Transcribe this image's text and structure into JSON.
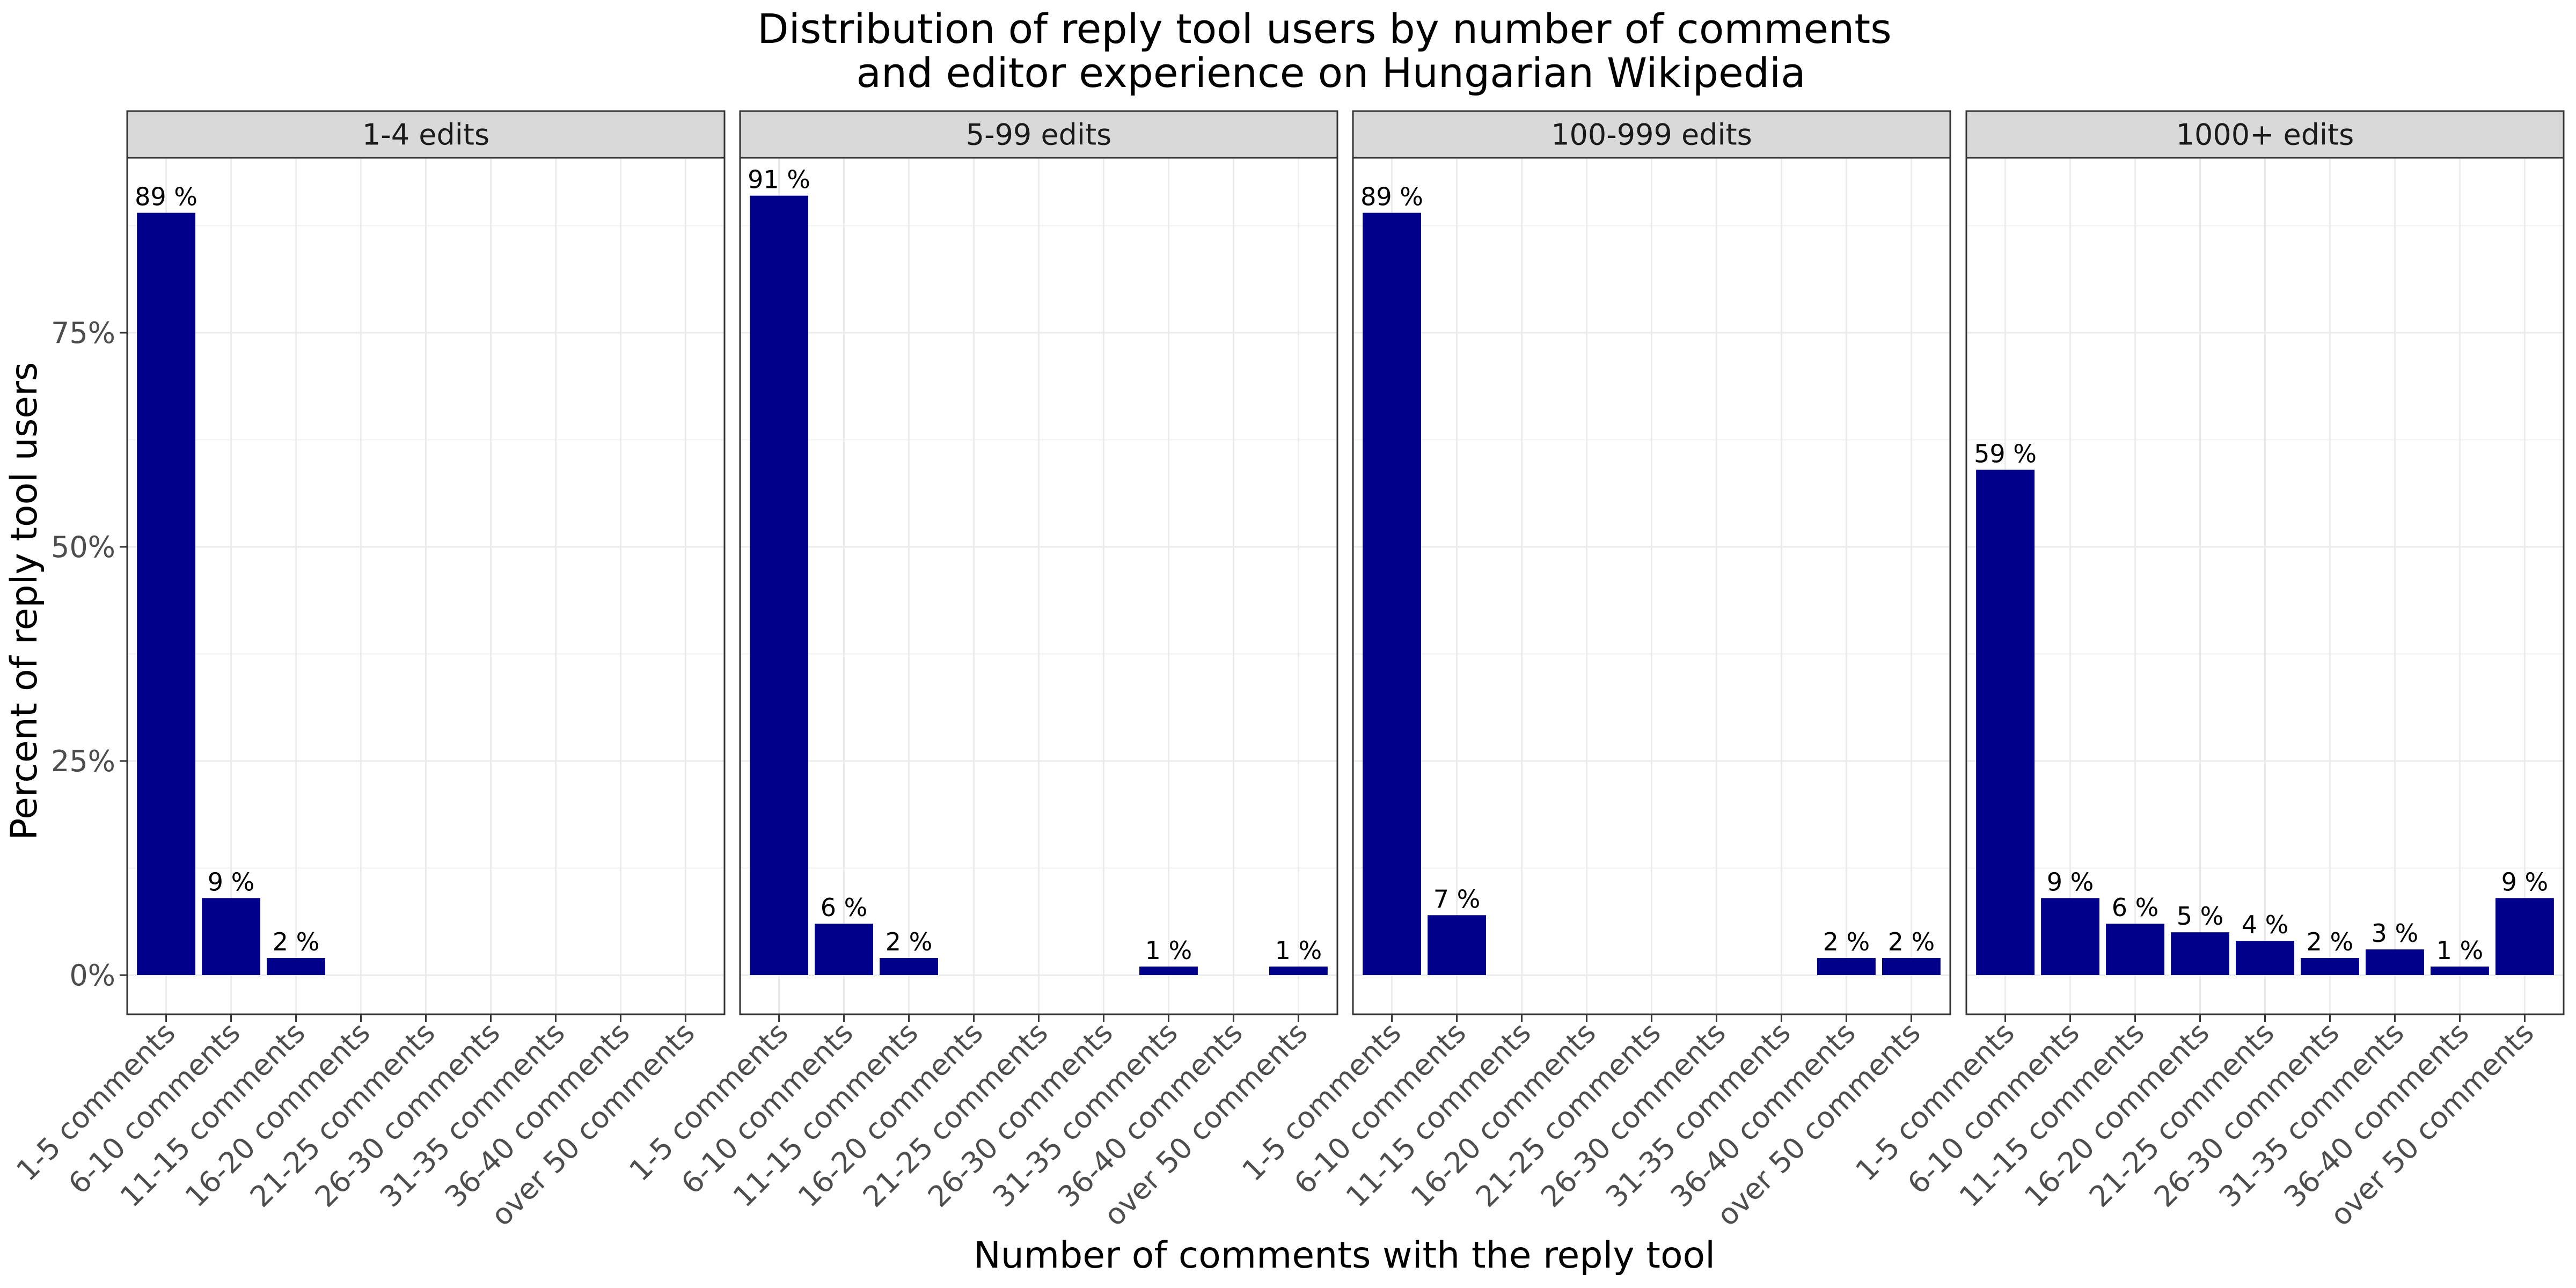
{
  "chart_data": {
    "type": "bar",
    "title": "Distribution of reply tool users by number of comments\nand editor experience on Hungarian Wikipedia",
    "xlabel": "Number of comments with the reply tool",
    "ylabel": "Percent of reply tool users",
    "ylim": [
      0,
      96
    ],
    "yticks": [
      0,
      25,
      50,
      75
    ],
    "ytick_labels": [
      "0%",
      "25%",
      "50%",
      "75%"
    ],
    "grid": true,
    "bar_color": "#00008b",
    "strip_color": "#d9d9d9",
    "categories": [
      "1-5 comments",
      "6-10 comments",
      "11-15 comments",
      "16-20 comments",
      "21-25 comments",
      "26-30 comments",
      "31-35 comments",
      "36-40 comments",
      "over 50 comments"
    ],
    "panels": [
      {
        "name": "1-4 edits",
        "values": [
          89,
          9,
          2,
          null,
          null,
          null,
          null,
          null,
          null
        ],
        "labels": [
          "89 %",
          "9 %",
          "2 %",
          "",
          "",
          "",
          "",
          "",
          ""
        ]
      },
      {
        "name": "5-99 edits",
        "values": [
          91,
          6,
          2,
          null,
          null,
          null,
          1,
          null,
          1
        ],
        "labels": [
          "91 %",
          "6 %",
          "2 %",
          "",
          "",
          "",
          "1 %",
          "",
          "1 %"
        ]
      },
      {
        "name": "100-999 edits",
        "values": [
          89,
          7,
          null,
          null,
          null,
          null,
          null,
          2,
          2
        ],
        "labels": [
          "89 %",
          "7 %",
          "",
          "",
          "",
          "",
          "",
          "2 %",
          "2 %"
        ]
      },
      {
        "name": "1000+ edits",
        "values": [
          59,
          9,
          6,
          5,
          4,
          2,
          3,
          1,
          9
        ],
        "labels": [
          "59 %",
          "9 %",
          "6 %",
          "5 %",
          "4 %",
          "2 %",
          "3 %",
          "1 %",
          "9 %"
        ]
      }
    ]
  }
}
